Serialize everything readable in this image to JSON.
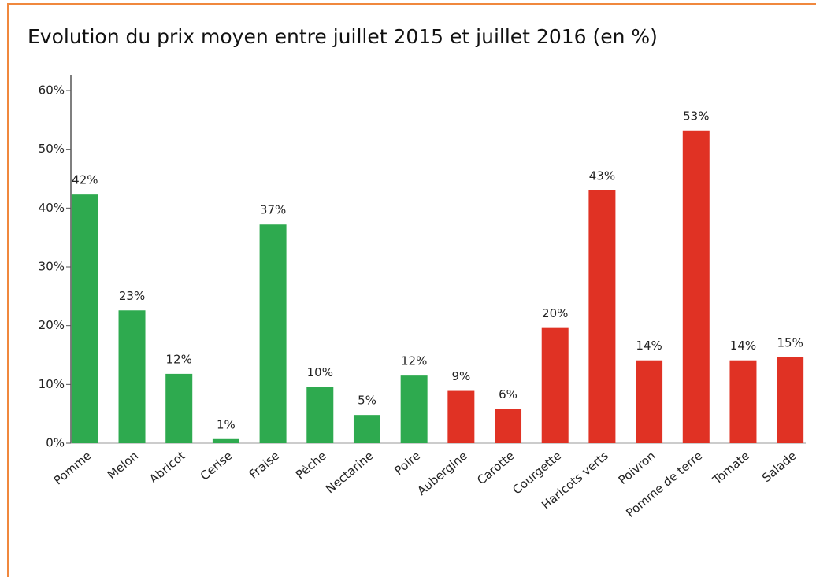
{
  "chart_data": {
    "type": "bar",
    "title": "Evolution du prix moyen entre juillet 2015 et juillet 2016 (en %)",
    "categories": [
      "Pomme",
      "Melon",
      "Abricot",
      "Cerise",
      "Fraise",
      "Pêche",
      "Nectarine",
      "Poire",
      "Aubergine",
      "Carotte",
      "Courgette",
      "Haricots verts",
      "Poivron",
      "Pomme de terre",
      "Tomate",
      "Salade"
    ],
    "values": [
      42.3,
      22.6,
      11.8,
      0.7,
      37.2,
      9.6,
      4.8,
      11.5,
      8.9,
      5.8,
      19.6,
      43.0,
      14.1,
      53.2,
      14.1,
      14.6
    ],
    "value_labels": [
      "42%",
      "23%",
      "12%",
      "1%",
      "37%",
      "10%",
      "5%",
      "12%",
      "9%",
      "6%",
      "20%",
      "43%",
      "14%",
      "53%",
      "14%",
      "15%"
    ],
    "colors": [
      "#2eaa4f",
      "#2eaa4f",
      "#2eaa4f",
      "#2eaa4f",
      "#2eaa4f",
      "#2eaa4f",
      "#2eaa4f",
      "#2eaa4f",
      "#e03224",
      "#e03224",
      "#e03224",
      "#e03224",
      "#e03224",
      "#e03224",
      "#e03224",
      "#e03224"
    ],
    "ylim": [
      0,
      60
    ],
    "yticks": [
      {
        "value": 0,
        "label": "0%"
      },
      {
        "value": 10,
        "label": "10%"
      },
      {
        "value": 20,
        "label": "20%"
      },
      {
        "value": 30,
        "label": "30%"
      },
      {
        "value": 40,
        "label": "40%"
      },
      {
        "value": 50,
        "label": "50%"
      },
      {
        "value": 60,
        "label": "60%"
      }
    ],
    "grid": false
  }
}
